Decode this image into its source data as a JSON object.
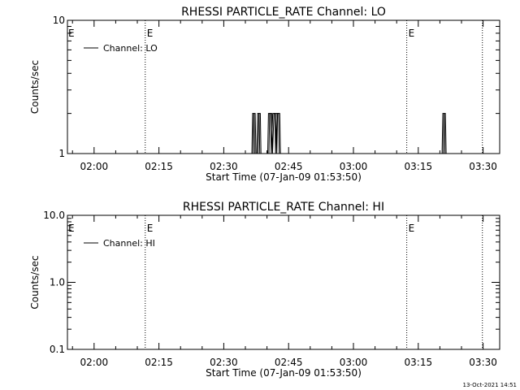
{
  "footer": {
    "timestamp": "13-Oct-2021 14:51"
  },
  "chart_data": [
    {
      "type": "line",
      "title": "RHESSI PARTICLE_RATE Channel: LO",
      "xlabel": "Start Time (07-Jan-09 01:53:50)",
      "ylabel": "Counts/sec",
      "y_scale": "log",
      "ylim": [
        1,
        10
      ],
      "y_ticks": [
        {
          "v": 1,
          "label": "1"
        },
        {
          "v": 10,
          "label": "10"
        }
      ],
      "xlim": [
        "01:53:50",
        "03:33:50"
      ],
      "x_ticks": [
        "02:00",
        "02:15",
        "02:30",
        "02:45",
        "03:00",
        "03:15",
        "03:30"
      ],
      "legend": {
        "position": "top-left",
        "entries": [
          "Channel: LO"
        ]
      },
      "event_markers": [
        {
          "time": "02:11:50",
          "label": "E"
        },
        {
          "time": "03:12:20",
          "label": "E"
        },
        {
          "time": "03:29:50",
          "label": ""
        }
      ],
      "series": [
        {
          "name": "Channel: LO",
          "points": [
            {
              "t": "02:36:30",
              "v": 1
            },
            {
              "t": "02:36:40",
              "v": 2
            },
            {
              "t": "02:37:00",
              "v": 2
            },
            {
              "t": "02:37:10",
              "v": 1
            },
            {
              "t": "02:37:40",
              "v": 1
            },
            {
              "t": "02:37:50",
              "v": 2
            },
            {
              "t": "02:38:10",
              "v": 2
            },
            {
              "t": "02:38:20",
              "v": 1
            },
            {
              "t": "02:40:10",
              "v": 1
            },
            {
              "t": "02:40:20",
              "v": 2
            },
            {
              "t": "02:40:50",
              "v": 2
            },
            {
              "t": "02:41:00",
              "v": 1
            },
            {
              "t": "02:41:20",
              "v": 2
            },
            {
              "t": "02:41:50",
              "v": 2
            },
            {
              "t": "02:42:00",
              "v": 1
            },
            {
              "t": "02:42:10",
              "v": 2
            },
            {
              "t": "02:42:40",
              "v": 2
            },
            {
              "t": "02:42:50",
              "v": 1
            },
            {
              "t": "03:20:30",
              "v": 1
            },
            {
              "t": "03:20:40",
              "v": 2
            },
            {
              "t": "03:21:00",
              "v": 2
            },
            {
              "t": "03:21:10",
              "v": 1
            }
          ]
        }
      ]
    },
    {
      "type": "line",
      "title": "RHESSI PARTICLE_RATE Channel: HI",
      "xlabel": "Start Time (07-Jan-09 01:53:50)",
      "ylabel": "Counts/sec",
      "y_scale": "log",
      "ylim": [
        0.1,
        10
      ],
      "y_ticks": [
        {
          "v": 0.1,
          "label": "0.1"
        },
        {
          "v": 1,
          "label": "1.0"
        },
        {
          "v": 10,
          "label": "10.0"
        }
      ],
      "xlim": [
        "01:53:50",
        "03:33:50"
      ],
      "x_ticks": [
        "02:00",
        "02:15",
        "02:30",
        "02:45",
        "03:00",
        "03:15",
        "03:30"
      ],
      "legend": {
        "position": "top-left",
        "entries": [
          "Channel: HI"
        ]
      },
      "event_markers": [
        {
          "time": "02:11:50",
          "label": "E"
        },
        {
          "time": "03:12:20",
          "label": "E"
        },
        {
          "time": "03:29:50",
          "label": ""
        }
      ],
      "series": [
        {
          "name": "Channel: HI",
          "points": []
        }
      ]
    }
  ]
}
